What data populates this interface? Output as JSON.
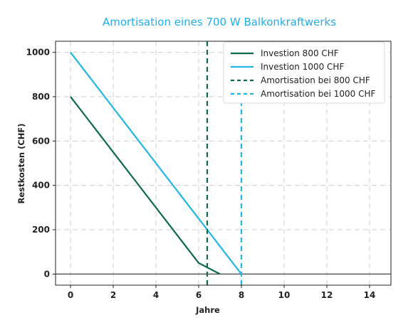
{
  "chart_data": {
    "type": "line",
    "title": "Amortisation eines 700 W Balkonkraftwerks",
    "xlabel": "Jahre",
    "ylabel": "Restkosten (CHF)",
    "xlim": [
      -0.7,
      15
    ],
    "ylim": [
      -50,
      1050
    ],
    "xticks": [
      0,
      2,
      4,
      6,
      8,
      10,
      12,
      14
    ],
    "yticks": [
      0,
      200,
      400,
      600,
      800,
      1000
    ],
    "grid": true,
    "legend_position": "top-right",
    "series": [
      {
        "name": "Investion 800 CHF",
        "color": "#0b6b46",
        "style": "solid",
        "x": [
          0,
          1,
          2,
          3,
          4,
          5,
          6,
          7
        ],
        "y": [
          800,
          675,
          550,
          425,
          300,
          175,
          50,
          0
        ]
      },
      {
        "name": "Investion 1000 CHF",
        "color": "#22b5e6",
        "style": "solid",
        "x": [
          0,
          1,
          2,
          3,
          4,
          5,
          6,
          7,
          8
        ],
        "y": [
          1000,
          875,
          750,
          625,
          500,
          375,
          250,
          125,
          0
        ]
      }
    ],
    "vlines": [
      {
        "name": "Amortisation bei 800 CHF",
        "x": 6.4,
        "color": "#0b6b46",
        "style": "dashed"
      },
      {
        "name": "Amortisation bei 1000 CHF",
        "x": 8,
        "color": "#22b5e6",
        "style": "dashed"
      }
    ]
  }
}
